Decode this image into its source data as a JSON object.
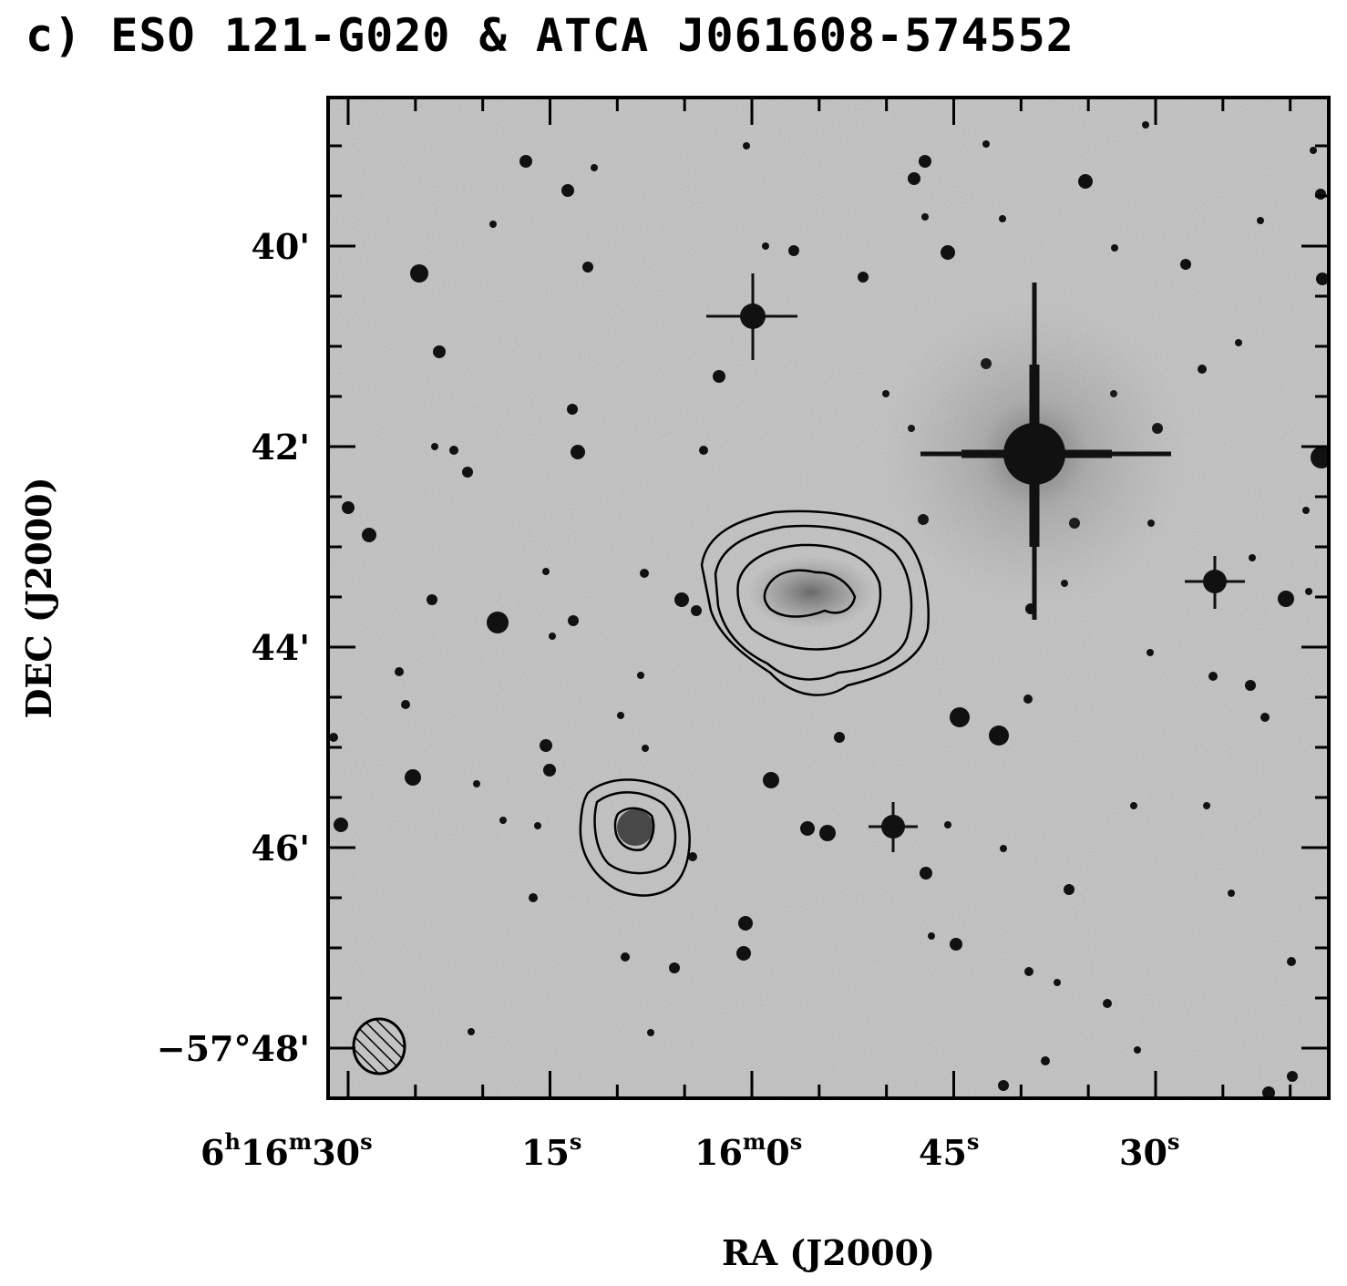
{
  "title": "c) ESO 121-G020 & ATCA J061608-574552",
  "axes": {
    "xlabel": "RA (J2000)",
    "ylabel": "DEC (J2000)",
    "ra_ticks": [
      {
        "h": "6",
        "m": "16",
        "s": "30",
        "ra_sec": 30
      },
      {
        "s": "15",
        "ra_sec": 15
      },
      {
        "m": "16",
        "s": "0",
        "ra_sec": 0
      },
      {
        "s": "45",
        "ra_sec": -15
      },
      {
        "s": "30",
        "ra_sec": -30
      }
    ],
    "dec_ticks": [
      {
        "label": "40'",
        "arcmin": 40
      },
      {
        "label": "42'",
        "arcmin": 42
      },
      {
        "label": "44'",
        "arcmin": 44
      },
      {
        "label": "46'",
        "arcmin": 46
      },
      {
        "label": "−57°48'",
        "arcmin": 48
      }
    ]
  },
  "colors": {
    "sky_background": "#c3c3c3",
    "stars": "#111111",
    "contours": "#000000",
    "frame": "#000000"
  },
  "objects": {
    "galaxy_1": "ESO 121-G020",
    "galaxy_2": "ATCA J061608-574552",
    "beam_marker": "hatched-ellipse"
  }
}
